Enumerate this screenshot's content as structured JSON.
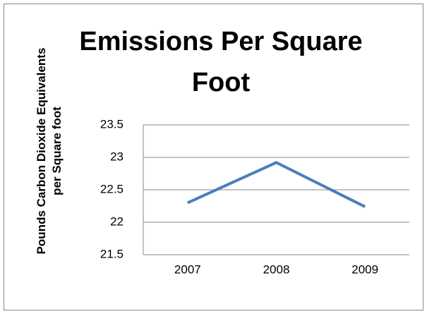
{
  "chart_data": {
    "type": "line",
    "title": "Emissions Per Square Foot",
    "y_label": "Pounds Carbon Dioxide Equivalents per Square foot",
    "categories": [
      "2007",
      "2008",
      "2009"
    ],
    "series": [
      {
        "name": "Emissions Per Square Foot",
        "color": "#4a7ebb",
        "values": [
          22.3,
          22.92,
          22.24
        ]
      }
    ],
    "ylim": [
      21.5,
      23.5
    ],
    "yticks": [
      21.5,
      22,
      22.5,
      23,
      23.5
    ],
    "grid": true
  }
}
